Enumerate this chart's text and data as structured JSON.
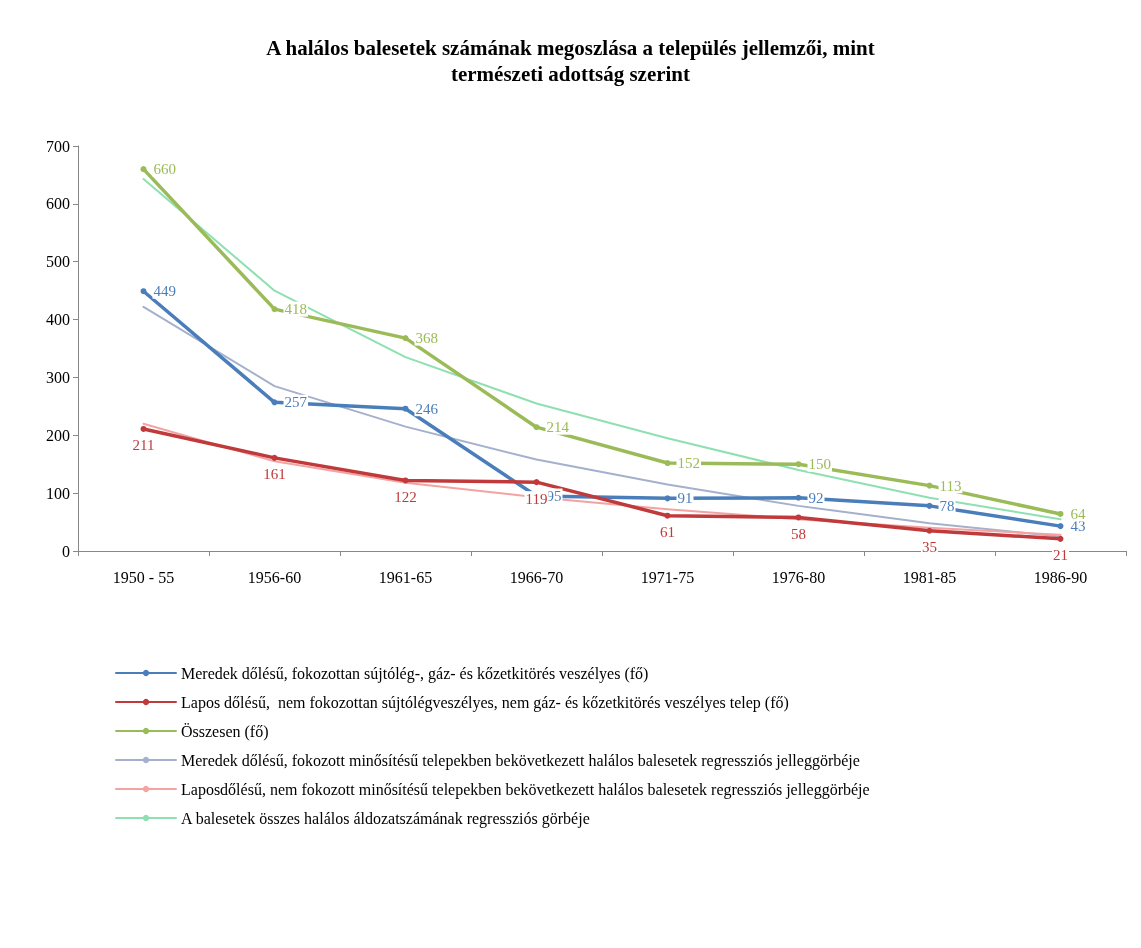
{
  "chart_data": {
    "type": "line",
    "title": "A halálos balesetek számának megoszlása a település jellemzői, mint\ntermészeti adottság szerint",
    "categories": [
      "1950 - 55",
      "1956-60",
      "1961-65",
      "1966-70",
      "1971-75",
      "1976-80",
      "1981-85",
      "1986-90"
    ],
    "ylim": [
      0,
      700
    ],
    "yticks": [
      0,
      100,
      200,
      300,
      400,
      500,
      600,
      700
    ],
    "legend": "bottom",
    "line_style": "solid",
    "series": [
      {
        "name": "Meredek dőlésű, fokozottan sújtólég-, gáz- és kőzetkitörés veszélyes (fő)",
        "color": "#4a7ebb",
        "marker": "circle",
        "values": [
          449,
          257,
          246,
          95,
          91,
          92,
          78,
          43
        ],
        "value_labels": [
          "449",
          "257",
          "246",
          "95",
          "91",
          "92",
          "78",
          "43"
        ]
      },
      {
        "name": "Lapos dőlésű,  nem fokozottan sújtólégveszélyes, nem gáz- és kőzetkitörés veszélyes telep (fő)",
        "color": "#c0393b",
        "marker": "circle",
        "values": [
          211,
          161,
          122,
          119,
          61,
          58,
          35,
          21
        ],
        "value_labels": [
          "211",
          "161",
          "122",
          "119",
          "61",
          "58",
          "35",
          "21"
        ]
      },
      {
        "name": "Összesen (fő)",
        "color": "#9bbb59",
        "marker": "circle",
        "values": [
          660,
          418,
          368,
          214,
          152,
          150,
          113,
          64
        ],
        "value_labels": [
          "660",
          "418",
          "368",
          "214",
          "152",
          "150",
          "113",
          "64"
        ]
      },
      {
        "name": "Meredek dőlésű, fokozott minősítésű telepekben bekövetkezett halálos balesetek regressziós jelleggörbéje",
        "color": "#a4b0cc",
        "marker": "none",
        "values": [
          422,
          285,
          215,
          158,
          115,
          78,
          48,
          25
        ]
      },
      {
        "name": "Laposdőlésű, nem fokozott minősítésű telepekben bekövetkezett halálos balesetek regressziós jelleggörbéje",
        "color": "#f4a3a3",
        "marker": "none",
        "values": [
          220,
          155,
          118,
          93,
          72,
          55,
          40,
          28
        ]
      },
      {
        "name": "A balesetek összes halálos áldozatszámának regressziós görbéje",
        "color": "#8fe0b0",
        "marker": "none",
        "values": [
          643,
          450,
          335,
          255,
          195,
          140,
          92,
          55
        ]
      }
    ]
  }
}
